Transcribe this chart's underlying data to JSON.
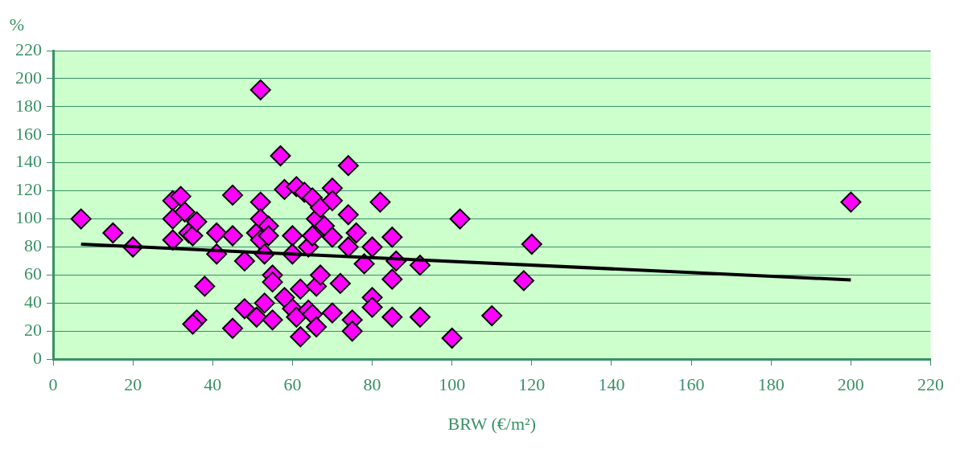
{
  "chart_data": {
    "type": "scatter",
    "xlabel": "BRW (€/m²)",
    "ylabel": "%",
    "xlim": [
      0,
      220
    ],
    "xticks": [
      0,
      20,
      40,
      60,
      80,
      100,
      120,
      140,
      160,
      180,
      200,
      220
    ],
    "ylim": [
      0,
      220
    ],
    "yticks": [
      0,
      20,
      40,
      60,
      80,
      100,
      120,
      140,
      160,
      180,
      200,
      220
    ],
    "grid": "y",
    "legend": false,
    "marker": "diamond",
    "series": [
      {
        "color": "#ff00ff",
        "x": [
          7,
          15,
          20,
          30,
          30,
          30,
          32,
          33,
          34,
          35,
          36,
          36,
          35,
          38,
          41,
          41,
          45,
          45,
          45,
          48,
          48,
          51,
          51,
          52,
          52,
          52,
          52,
          53,
          53,
          54,
          54,
          55,
          55,
          55,
          57,
          58,
          58,
          60,
          60,
          60,
          61,
          61,
          62,
          62,
          63,
          64,
          64,
          65,
          65,
          65,
          66,
          66,
          66,
          67,
          67,
          68,
          70,
          70,
          70,
          70,
          72,
          74,
          74,
          74,
          75,
          75,
          76,
          78,
          80,
          80,
          80,
          82,
          85,
          85,
          85,
          86,
          92,
          92,
          100,
          102,
          110,
          118,
          120,
          200
        ],
        "values": [
          100,
          90,
          80,
          113,
          100,
          85,
          116,
          105,
          90,
          88,
          98,
          28,
          25,
          52,
          90,
          75,
          117,
          22,
          88,
          70,
          36,
          30,
          90,
          112,
          192,
          100,
          85,
          40,
          75,
          95,
          88,
          60,
          55,
          28,
          145,
          121,
          44,
          88,
          75,
          36,
          123,
          30,
          50,
          16,
          119,
          80,
          35,
          115,
          88,
          32,
          100,
          52,
          23,
          108,
          60,
          95,
          122,
          113,
          87,
          33,
          54,
          138,
          103,
          80,
          28,
          20,
          90,
          68,
          80,
          44,
          37,
          112,
          87,
          57,
          30,
          70,
          67,
          30,
          15,
          100,
          31,
          56,
          82,
          112
        ]
      },
      {
        "type": "line",
        "color": "#000000",
        "marker": "none",
        "x": [
          7,
          200
        ],
        "values": [
          82,
          56.5
        ]
      }
    ]
  }
}
